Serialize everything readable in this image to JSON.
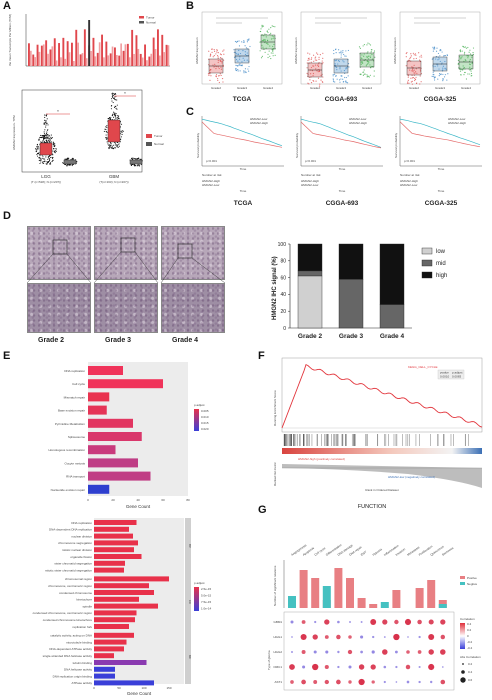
{
  "panels": {
    "A": "A",
    "B": "B",
    "C": "C",
    "D": "D",
    "E": "E",
    "F": "F",
    "G": "G"
  },
  "panelA": {
    "legend": [
      "Tumor",
      "Normal"
    ],
    "ylabel_top": "the mean Transcripts Per Million (TPM)",
    "ylabel_box": "HMGN2 Expression- TPM",
    "groups": [
      "LGG",
      "GBM"
    ],
    "group_notes": [
      "(T (n=518); N (n=207))",
      "(T(n=163); N (n=207))"
    ],
    "box_legend": [
      "Tumor",
      "Normal"
    ],
    "colors": {
      "tumor": "#e0474c",
      "normal": "#555555"
    }
  },
  "panelB": {
    "ylabel": "HMGN2 Expression",
    "cohorts": [
      "TCGA",
      "CGGA-693",
      "CGGA-325"
    ],
    "grades": [
      "Grade2",
      "Grade3",
      "Grade4"
    ],
    "colors": {
      "g2": "#e05555",
      "g3": "#4a8fc9",
      "g4": "#4fb35a"
    }
  },
  "panelC": {
    "ylabel": "Survival probability",
    "xlabel": "Time",
    "risk_label": "Number at risk",
    "cohorts": [
      "TCGA",
      "CGGA-693",
      "CGGA-325"
    ],
    "legend": [
      "HMGN2-Low",
      "HMGN2-High"
    ],
    "pvals": [
      "p<0.001",
      "p<0.001",
      "p<0.001"
    ],
    "colors": {
      "low": "#3bb7c7",
      "high": "#e46a6a"
    }
  },
  "panelD": {
    "grades": [
      "Grade 2",
      "Grade 3",
      "Grade 4"
    ],
    "ylabel": "HMGN2 IHC signal (%)",
    "legend": [
      "low",
      "mid",
      "high"
    ],
    "ticks": [
      "0",
      "20",
      "40",
      "60",
      "80",
      "100"
    ]
  },
  "panelE": {
    "kegg_terms": [
      "DNA replication",
      "Cell cycle",
      "Mismatch repair",
      "Base excision repair",
      "Pyrimidine Metabolism",
      "Spliceosome",
      "Homologous recombination",
      "Oocyte meiosis",
      "RNA transport",
      "Nucleotide excision repair"
    ],
    "kegg_xlabel": "Gene Count",
    "kegg_ticks": [
      "0",
      "20",
      "40",
      "60",
      "80"
    ],
    "kegg_legend_title": "p.adjust",
    "kegg_legend_ticks": [
      "0.005",
      "0.010",
      "0.015",
      "0.020"
    ],
    "go_terms": [
      "DNA replication",
      "DNA-dependent DNA replication",
      "nuclear division",
      "chromosome segregation",
      "mitotic nuclear division",
      "organelle fission",
      "sister chromatid segregation",
      "mitotic sister chromatid segregation",
      "chromosomal region",
      "chromosome, centromeric region",
      "condensed chromosome",
      "kinetochore",
      "spindle",
      "condensed chromosome, centromeric region",
      "condensed chromosome kinetochore",
      "replication fork",
      "catalytic activity, acting on DNA",
      "microtubule binding",
      "DNA-dependent ATPase activity",
      "single-stranded DNA helicase activity",
      "tubulin binding",
      "DNA helicase activity",
      "DNA replication origin binding",
      "ATPase activity"
    ],
    "go_categories": [
      "BP",
      "CC",
      "MF"
    ],
    "go_xlabel": "Gene Count",
    "go_ticks": [
      "0",
      "50",
      "100",
      "150"
    ],
    "go_legend_title": "p.adjust",
    "go_legend_ticks": [
      "2.5e-15",
      "5.0e-15",
      "7.5e-15",
      "1.0e-14"
    ]
  },
  "panelF": {
    "ylabel": "Running Enrichment Score",
    "ylabel2": "Ranked list metric",
    "xlabel": "Rank in Ordered Dataset",
    "gene_set": "KEGG_CELL_CYCLE",
    "stats_head": [
      "pvalue",
      "p.adjust"
    ],
    "stats_vals": [
      "0.0010",
      "0.0083"
    ],
    "high_label": "HMGN2-high (positively correlated)",
    "low_label": "HMGN2-low (negatively correlated)"
  },
  "panelG": {
    "title": "FUNCTION",
    "functions": [
      "Angiogenesis",
      "Apoptosis",
      "Cell cycle",
      "Differentiation",
      "DNA damage",
      "DNA repair",
      "EMT",
      "Hypoxia",
      "Inflammation",
      "Invasion",
      "Metastasis",
      "Proliferation",
      "Quiescence",
      "Stemness"
    ],
    "bar_ylabel": "Number of significant relations",
    "bar_legend": [
      "Postive",
      "Negtive"
    ],
    "genes": [
      "GBM1",
      "HGG1",
      "HGG2",
      "OMC1",
      "AST1"
    ],
    "gene_ylabel": "Type of glioma",
    "corr_title": "Correlation",
    "corr_ticks": [
      "0.4",
      "0.2",
      "0",
      "-0.2",
      "-0.4"
    ],
    "abs_title": "Abs Correlation",
    "abs_ticks": [
      "0.2",
      "0.4",
      "0.6"
    ],
    "colors": {
      "pos": "#e87f83",
      "neg": "#45c1c1"
    }
  }
}
